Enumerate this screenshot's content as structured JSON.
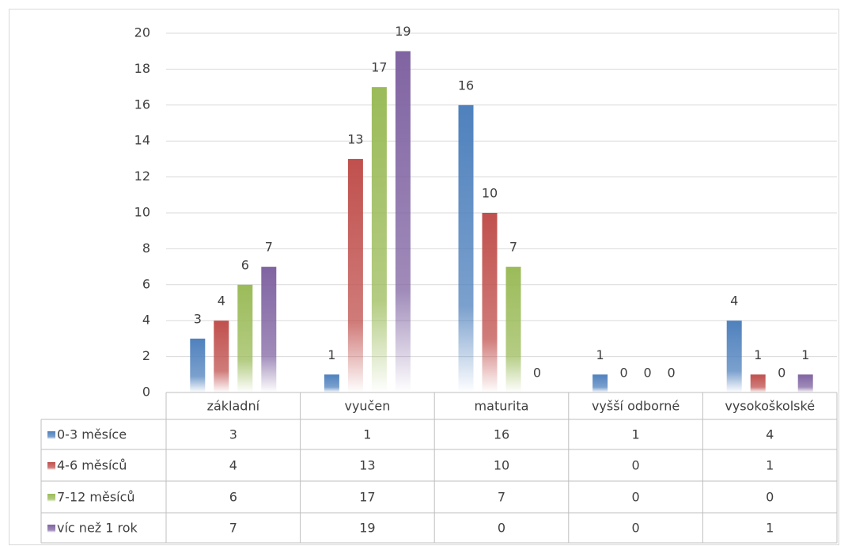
{
  "chart_data": {
    "type": "bar",
    "categories": [
      "základní",
      "vyučen",
      "maturita",
      "vyšší odborné",
      "vysokoškolské"
    ],
    "series": [
      {
        "name": "0-3 měsíce",
        "color": "#4f81bd",
        "values": [
          3,
          1,
          16,
          1,
          4
        ]
      },
      {
        "name": "4-6 měsíců",
        "color": "#c0504d",
        "values": [
          4,
          13,
          10,
          0,
          1
        ]
      },
      {
        "name": "7-12 měsíců",
        "color": "#9bbb59",
        "values": [
          6,
          17,
          7,
          0,
          0
        ]
      },
      {
        "name": "víc než 1 rok",
        "color": "#8064a2",
        "values": [
          7,
          19,
          0,
          0,
          1
        ]
      }
    ],
    "ylim": [
      0,
      20
    ],
    "yticks": [
      0,
      2,
      4,
      6,
      8,
      10,
      12,
      14,
      16,
      18,
      20
    ],
    "grid": true,
    "data_table": true
  }
}
